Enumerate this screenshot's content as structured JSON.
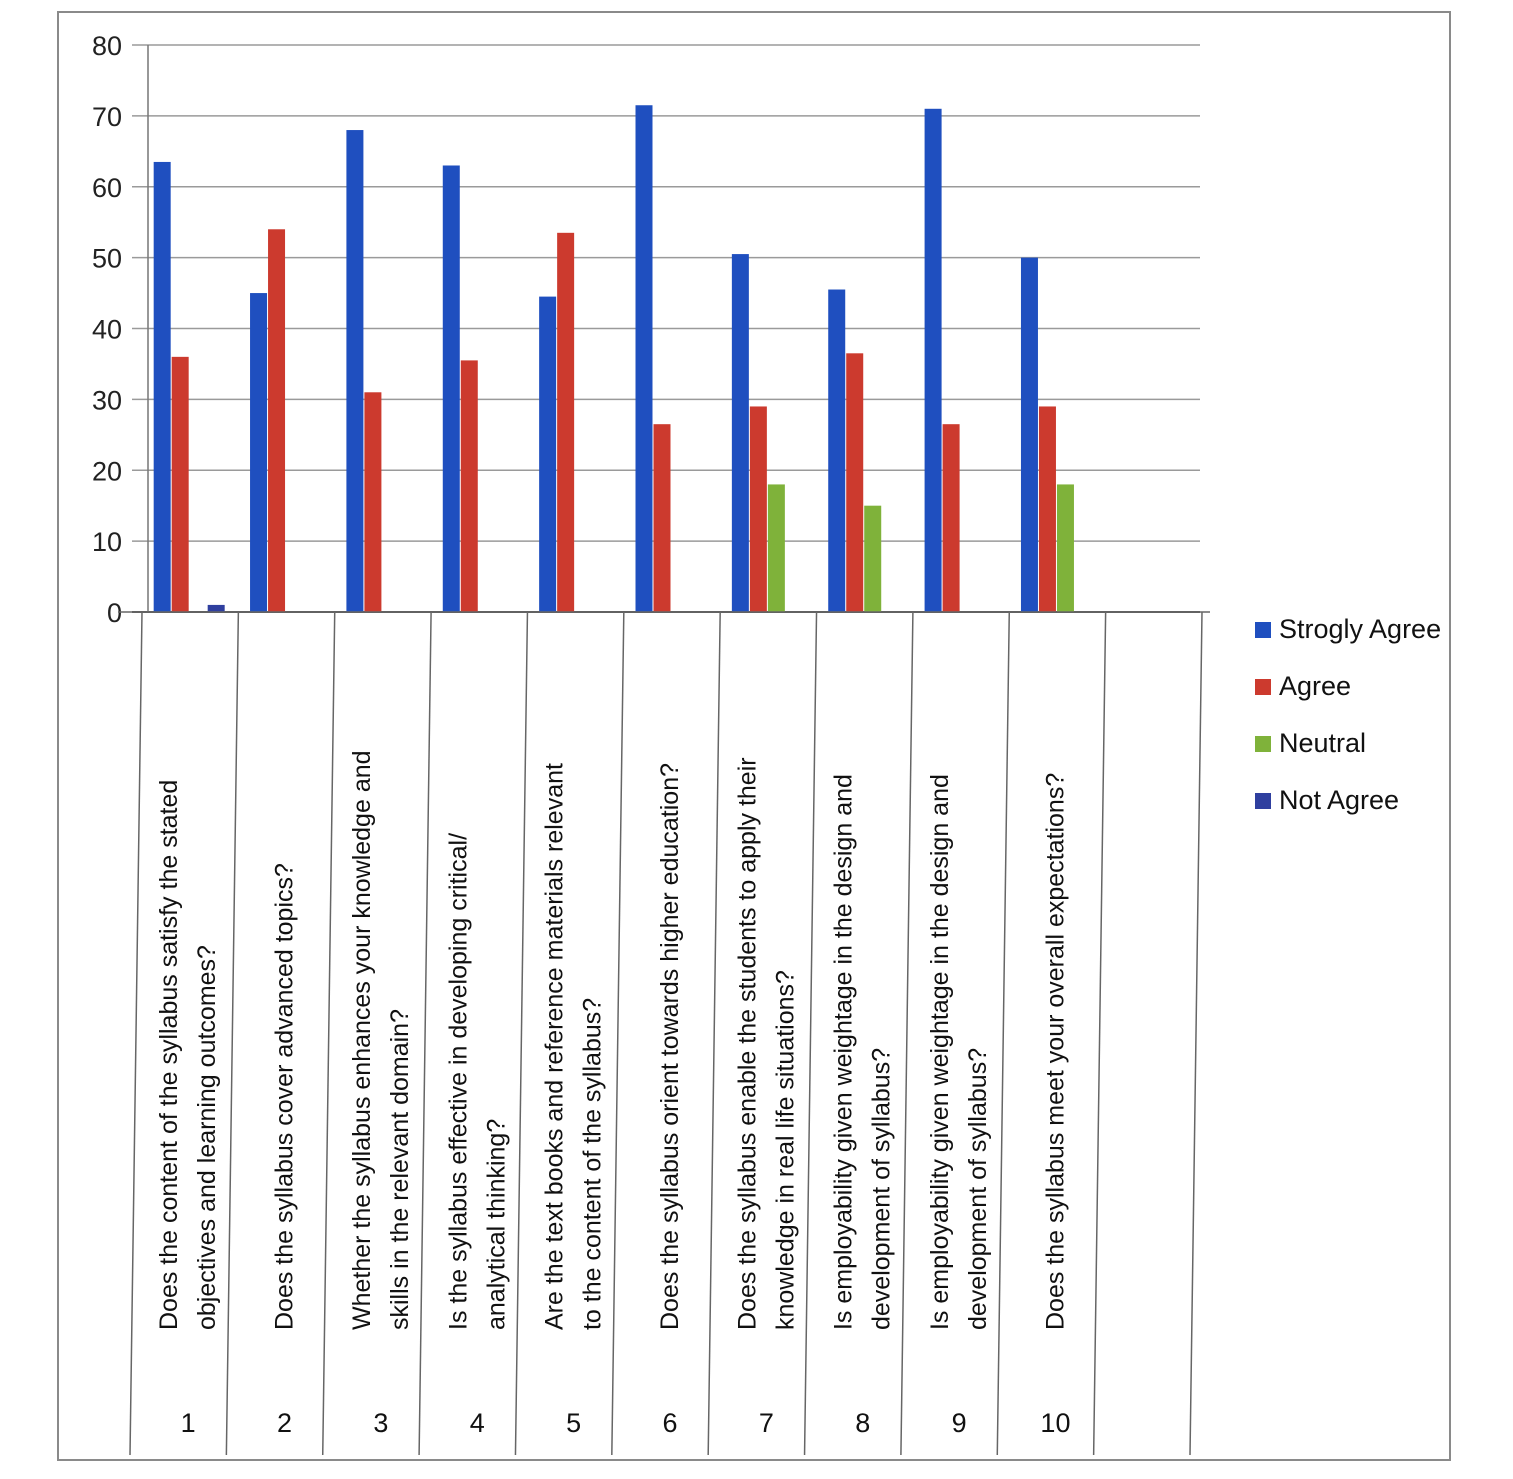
{
  "chart_data": {
    "type": "bar",
    "y_axis": {
      "range": [
        0,
        80
      ],
      "ticks": [
        "0",
        "10",
        "20",
        "30",
        "40",
        "50",
        "60",
        "70",
        "80"
      ],
      "gridlines": true
    },
    "categories": [
      {
        "number": "1",
        "lines": [
          "Does the content of the syllabus satisfy the stated",
          "objectives and learning outcomes?"
        ]
      },
      {
        "number": "2",
        "lines": [
          "Does the syllabus cover advanced topics?"
        ]
      },
      {
        "number": "3",
        "lines": [
          "Whether the syllabus enhances your knowledge and",
          "skills in the relevant domain?"
        ]
      },
      {
        "number": "4",
        "lines": [
          "Is the syllabus effective in developing critical/",
          "analytical thinking?"
        ]
      },
      {
        "number": "5",
        "lines": [
          "Are the text books and reference materials relevant",
          "to the content of the syllabus?"
        ]
      },
      {
        "number": "6",
        "lines": [
          "Does the syllabus orient towards higher education?"
        ]
      },
      {
        "number": "7",
        "lines": [
          "Does the syllabus enable the students to apply their",
          "knowledge in real life situations?"
        ]
      },
      {
        "number": "8",
        "lines": [
          "Is employability given weightage in the design and",
          "development of syllabus?"
        ]
      },
      {
        "number": "9",
        "lines": [
          "Is employability given weightage in the design and",
          "development of syllabus?"
        ]
      },
      {
        "number": "10",
        "lines": [
          "Does the syllabus meet your overall expectations?"
        ]
      }
    ],
    "series": [
      {
        "name": "Strogly Agree",
        "color": "#1f4fbf",
        "values": [
          63.5,
          45,
          68,
          63,
          44.5,
          71.5,
          50.5,
          45.5,
          71,
          50
        ]
      },
      {
        "name": "Agree",
        "color": "#cc3a2e",
        "values": [
          36,
          54,
          31,
          35.5,
          53.5,
          26.5,
          29,
          36.5,
          26.5,
          29
        ]
      },
      {
        "name": "Neutral",
        "color": "#7fb23a",
        "values": [
          0,
          0,
          0,
          0,
          0,
          0,
          18,
          15,
          0,
          18
        ]
      },
      {
        "name": "Not Agree",
        "color": "#2f3f9f",
        "values": [
          1,
          0,
          0,
          0,
          0,
          0,
          0,
          0,
          0,
          0
        ]
      }
    ],
    "legend_position": "right"
  }
}
